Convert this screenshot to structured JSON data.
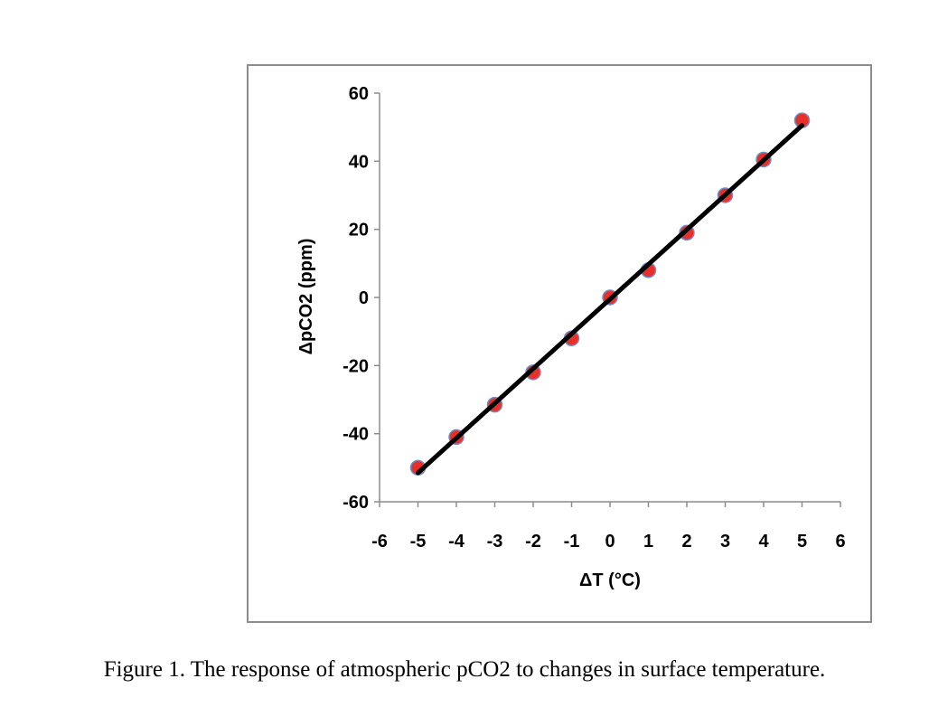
{
  "chart_data": {
    "type": "scatter",
    "xlabel": "ΔT (°C)",
    "ylabel": "ΔpCO2 (ppm)",
    "xlim": [
      -6,
      6
    ],
    "ylim": [
      -60,
      60
    ],
    "xticks": [
      -6,
      -5,
      -4,
      -3,
      -2,
      -1,
      0,
      1,
      2,
      3,
      4,
      5,
      6
    ],
    "yticks": [
      -60,
      -40,
      -20,
      0,
      20,
      40,
      60
    ],
    "grid": false,
    "series": [
      {
        "x": [
          -5,
          -4,
          -3,
          -2,
          -1,
          0,
          1,
          2,
          3,
          4,
          5
        ],
        "y": [
          -50,
          -41,
          -31.5,
          -22,
          -12,
          0,
          8,
          19,
          30,
          40.5,
          52
        ],
        "marker_color": "#e8302a",
        "marker_edge_color": "#6b8fc8"
      }
    ],
    "trendline": {
      "type": "linear",
      "x": [
        -5,
        5
      ],
      "y": [
        -51.5,
        50.5
      ],
      "color": "#000000"
    }
  },
  "caption": "Figure 1. The response of atmospheric pCO2 to changes in surface temperature."
}
